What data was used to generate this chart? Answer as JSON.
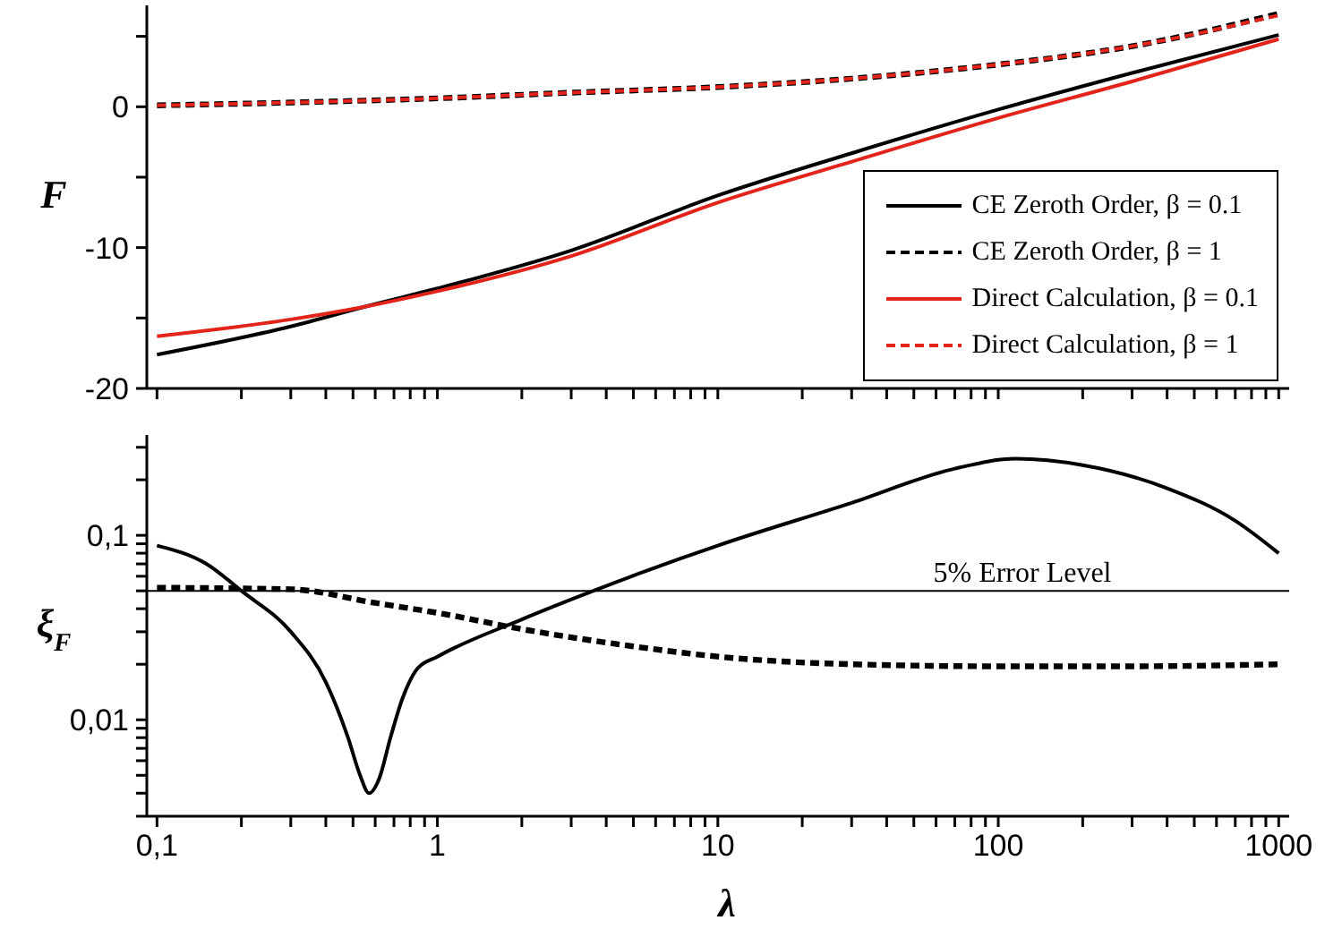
{
  "chart_data": [
    {
      "type": "line",
      "ylabel": "F",
      "legend": "bottom right",
      "log": "x",
      "tick_labels": "y",
      "xlim": [
        0.092,
        1090
      ],
      "xticks": [
        0.1,
        {
          "value": 0.2,
          "label": null
        },
        {
          "value": 0.3,
          "label": null
        },
        {
          "value": 0.4,
          "label": null
        },
        {
          "value": 0.5,
          "label": null
        },
        {
          "value": 0.6,
          "label": null
        },
        {
          "value": 0.7,
          "label": null
        },
        {
          "value": 0.8,
          "label": null
        },
        {
          "value": 0.9,
          "label": null
        },
        1,
        {
          "value": 2,
          "label": null
        },
        {
          "value": 3,
          "label": null
        },
        {
          "value": 4,
          "label": null
        },
        {
          "value": 5,
          "label": null
        },
        {
          "value": 6,
          "label": null
        },
        {
          "value": 7,
          "label": null
        },
        {
          "value": 8,
          "label": null
        },
        {
          "value": 9,
          "label": null
        },
        10,
        {
          "value": 20,
          "label": null
        },
        {
          "value": 30,
          "label": null
        },
        {
          "value": 40,
          "label": null
        },
        {
          "value": 50,
          "label": null
        },
        {
          "value": 60,
          "label": null
        },
        {
          "value": 70,
          "label": null
        },
        {
          "value": 80,
          "label": null
        },
        {
          "value": 90,
          "label": null
        },
        100,
        {
          "value": 200,
          "label": null
        },
        {
          "value": 300,
          "label": null
        },
        {
          "value": 400,
          "label": null
        },
        {
          "value": 500,
          "label": null
        },
        {
          "value": 600,
          "label": null
        },
        {
          "value": 700,
          "label": null
        },
        {
          "value": 800,
          "label": null
        },
        {
          "value": 900,
          "label": null
        },
        1000
      ],
      "ylim": [
        -20,
        7.2
      ],
      "yticks": [
        -20,
        {
          "value": -15,
          "label": null
        },
        -10,
        {
          "value": -5,
          "label": null
        },
        0,
        {
          "value": 5,
          "label": null
        }
      ],
      "series": [
        {
          "name": "CE Zeroth Order, β = 0.1",
          "color": "#000000",
          "line_style": "solid",
          "x": [
            0.1,
            0.3,
            0.55,
            1,
            3,
            10,
            30,
            100,
            300,
            1000
          ],
          "values": [
            -17.6,
            -15.6,
            -14.2,
            -12.9,
            -10.2,
            -6.3,
            -3.3,
            -0.2,
            2.4,
            5.1
          ]
        },
        {
          "name": "CE Zeroth Order, β = 1",
          "color": "#000000",
          "line_style": "dashed",
          "x": [
            0.1,
            0.3,
            1,
            3,
            10,
            30,
            100,
            300,
            1000
          ],
          "values": [
            0.1,
            0.3,
            0.6,
            1.0,
            1.4,
            2.0,
            3.0,
            4.3,
            6.6
          ]
        },
        {
          "name": "Direct Calculation, β = 0.1",
          "color": "#e3241b",
          "line_style": "solid",
          "x": [
            0.1,
            0.3,
            0.55,
            1,
            3,
            10,
            30,
            100,
            300,
            1000
          ],
          "values": [
            -16.3,
            -15.1,
            -14.2,
            -13.1,
            -10.6,
            -6.8,
            -3.9,
            -0.8,
            1.8,
            4.8
          ]
        },
        {
          "name": "Direct Calculation, β = 1",
          "color": "#e3241b",
          "line_style": "dashed",
          "x": [
            0.1,
            0.3,
            1,
            3,
            10,
            30,
            100,
            300,
            1000
          ],
          "values": [
            0.1,
            0.3,
            0.6,
            1.0,
            1.4,
            2.0,
            3.0,
            4.3,
            6.5
          ]
        }
      ]
    },
    {
      "type": "line",
      "xlabel": "λ",
      "ylabel": "ξ$_{F}$",
      "log": "xy",
      "xlim": [
        0.092,
        1090
      ],
      "xticks": [
        {
          "value": 0.1,
          "label": "0,1"
        },
        {
          "value": 0.2,
          "label": null
        },
        {
          "value": 0.3,
          "label": null
        },
        {
          "value": 0.4,
          "label": null
        },
        {
          "value": 0.5,
          "label": null
        },
        {
          "value": 0.6,
          "label": null
        },
        {
          "value": 0.7,
          "label": null
        },
        {
          "value": 0.8,
          "label": null
        },
        {
          "value": 0.9,
          "label": null
        },
        1,
        {
          "value": 2,
          "label": null
        },
        {
          "value": 3,
          "label": null
        },
        {
          "value": 4,
          "label": null
        },
        {
          "value": 5,
          "label": null
        },
        {
          "value": 6,
          "label": null
        },
        {
          "value": 7,
          "label": null
        },
        {
          "value": 8,
          "label": null
        },
        {
          "value": 9,
          "label": null
        },
        10,
        {
          "value": 20,
          "label": null
        },
        {
          "value": 30,
          "label": null
        },
        {
          "value": 40,
          "label": null
        },
        {
          "value": 50,
          "label": null
        },
        {
          "value": 60,
          "label": null
        },
        {
          "value": 70,
          "label": null
        },
        {
          "value": 80,
          "label": null
        },
        {
          "value": 90,
          "label": null
        },
        100,
        {
          "value": 200,
          "label": null
        },
        {
          "value": 300,
          "label": null
        },
        {
          "value": 400,
          "label": null
        },
        {
          "value": 500,
          "label": null
        },
        {
          "value": 600,
          "label": null
        },
        {
          "value": 700,
          "label": null
        },
        {
          "value": 800,
          "label": null
        },
        {
          "value": 900,
          "label": null
        },
        1000
      ],
      "ylim": [
        0.003,
        0.35
      ],
      "yticks": [
        {
          "value": 0.003,
          "label": null
        },
        {
          "value": 0.004,
          "label": null
        },
        {
          "value": 0.005,
          "label": null
        },
        {
          "value": 0.006,
          "label": null
        },
        {
          "value": 0.007,
          "label": null
        },
        {
          "value": 0.008,
          "label": null
        },
        {
          "value": 0.009,
          "label": null
        },
        {
          "value": 0.01,
          "label": "0,01"
        },
        {
          "value": 0.02,
          "label": null
        },
        {
          "value": 0.03,
          "label": null
        },
        {
          "value": 0.04,
          "label": null
        },
        {
          "value": 0.05,
          "label": null
        },
        {
          "value": 0.06,
          "label": null
        },
        {
          "value": 0.07,
          "label": null
        },
        {
          "value": 0.08,
          "label": null
        },
        {
          "value": 0.09,
          "label": null
        },
        {
          "value": 0.1,
          "label": "0,1"
        },
        {
          "value": 0.2,
          "label": null
        },
        {
          "value": 0.3,
          "label": null
        }
      ],
      "ref_lines": [
        {
          "axis": "y",
          "value": 0.05,
          "label": "5% Error Level",
          "color": "#000000"
        }
      ],
      "series": [
        {
          "color": "#000000",
          "line_style": "solid",
          "x": [
            0.1,
            0.15,
            0.2,
            0.3,
            0.4,
            0.48,
            0.53,
            0.57,
            0.62,
            0.68,
            0.75,
            0.85,
            1,
            2,
            3.6,
            10,
            30,
            70,
            115,
            200,
            400,
            700,
            1000
          ],
          "values": [
            0.088,
            0.07,
            0.05,
            0.03,
            0.016,
            0.008,
            0.005,
            0.004,
            0.0048,
            0.008,
            0.013,
            0.019,
            0.022,
            0.035,
            0.05,
            0.088,
            0.15,
            0.23,
            0.26,
            0.24,
            0.18,
            0.12,
            0.08
          ]
        },
        {
          "color": "#000000",
          "line_style": "dashed",
          "x": [
            0.1,
            0.3,
            0.6,
            1,
            2,
            5,
            10,
            30,
            100,
            300,
            1000
          ],
          "values": [
            0.052,
            0.051,
            0.043,
            0.038,
            0.031,
            0.025,
            0.022,
            0.02,
            0.0195,
            0.0195,
            0.02
          ]
        }
      ]
    }
  ]
}
